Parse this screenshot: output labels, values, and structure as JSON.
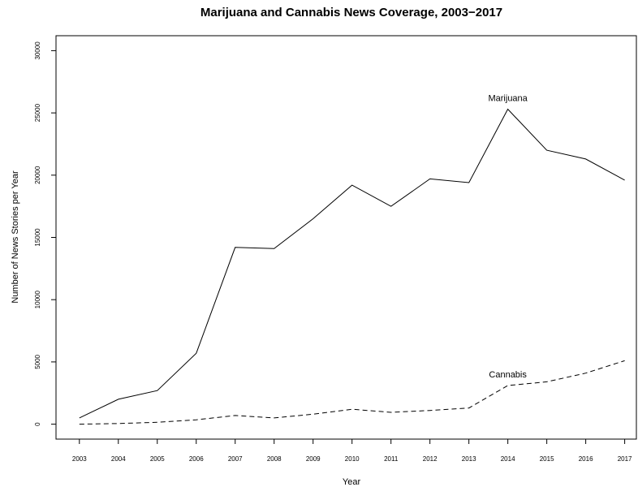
{
  "chart_data": {
    "type": "line",
    "title": "Marijuana and Cannabis News Coverage, 2003−2017",
    "xlabel": "Year",
    "ylabel": "Number of News Stories per Year",
    "x": [
      2003,
      2004,
      2005,
      2006,
      2007,
      2008,
      2009,
      2010,
      2011,
      2012,
      2013,
      2014,
      2015,
      2016,
      2017
    ],
    "x_tick_labels": [
      "2003",
      "2004",
      "2005",
      "2006",
      "2007",
      "2008",
      "2009",
      "2010",
      "2011",
      "2012",
      "2013",
      "2014",
      "2015",
      "2016",
      "2017"
    ],
    "y_ticks": [
      0,
      5000,
      10000,
      15000,
      20000,
      25000,
      30000
    ],
    "y_tick_labels": [
      "0",
      "5000",
      "10000",
      "15000",
      "20000",
      "25000",
      "30000"
    ],
    "xlim": [
      2002.4,
      2017.3
    ],
    "ylim": [
      -1200,
      31200
    ],
    "grid": false,
    "legend": "none",
    "series": [
      {
        "name": "Marijuana",
        "line_style": "solid",
        "color": "#000000",
        "values": [
          500,
          2000,
          2700,
          5700,
          14200,
          14100,
          16500,
          19200,
          17500,
          19700,
          19400,
          25300,
          22000,
          21300,
          19600
        ]
      },
      {
        "name": "Cannabis",
        "line_style": "dashed",
        "color": "#000000",
        "values": [
          0,
          50,
          150,
          350,
          700,
          500,
          800,
          1200,
          950,
          1100,
          1300,
          3100,
          3400,
          4100,
          5100
        ]
      }
    ]
  }
}
